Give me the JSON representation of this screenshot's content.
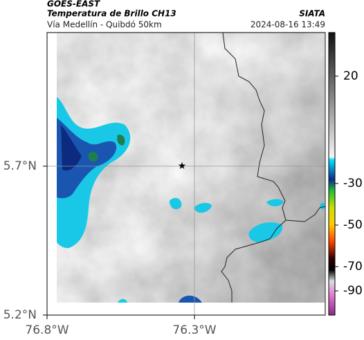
{
  "header": {
    "title": "GOES-EAST",
    "subtitle": "Temperatura de Brillo CH13",
    "source": "SIATA",
    "route": "Vía Medellín - Quibdó 50km",
    "timestamp": "2024-08-16 13:49"
  },
  "map": {
    "lat_labels": [
      "5.7°N",
      "5.2°N"
    ],
    "lon_labels": [
      "76.8°W",
      "76.3°W"
    ]
  },
  "colorbar": {
    "ticks": [
      20,
      -30,
      -50,
      -70,
      -90
    ]
  }
}
